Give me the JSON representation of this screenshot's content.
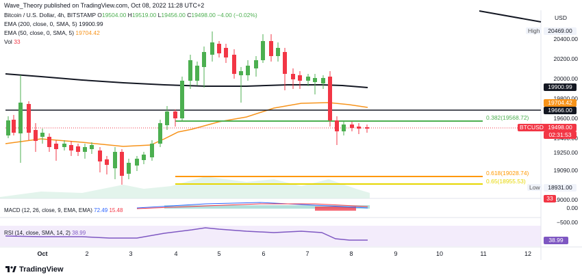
{
  "header": {
    "publisher": "Wave_Theory published on TradingView.com, Oct 08, 2022 11:28 UTC+2"
  },
  "legend": {
    "symbol": "Bitcoin / U.S. Dollar, 4h, BITSTAMP",
    "open_label": "O",
    "open": "19504.00",
    "high_label": "H",
    "high": "19519.00",
    "low_label": "L",
    "low": "19456.00",
    "close_label": "C",
    "close": "19498.00",
    "change": "−4.00 (−0.02%)",
    "ema200_label": "EMA (200, close, 0, SMA, 5)",
    "ema200_value": "19900.99",
    "ema50_label": "EMA (50, close, 0, SMA, 5)",
    "ema50_value": "19704.42",
    "vol_label": "Vol",
    "vol_value": "33"
  },
  "price_axis": {
    "currency": "USD",
    "ticks": [
      "20400.00",
      "20200.00",
      "20000.00",
      "19800.00",
      "19600.00",
      "19400.00",
      "19250.00",
      "19090.00",
      "19000.00"
    ],
    "high_label": "High",
    "high_value": "20469.00",
    "low_label": "Low",
    "low_value": "18931.00",
    "ema200_tag": "19900.99",
    "ema50_tag": "19704.42",
    "black_line_tag": "19666.00",
    "last_symbol": "BTCUSD",
    "last_price": "19498.00",
    "countdown": "02:31:53",
    "vol_tag": "33"
  },
  "fibonacci": [
    {
      "label": "0.382(19568.72)",
      "color": "#4caf50"
    },
    {
      "label": "0.618(19028.74)",
      "color": "#ff9800"
    },
    {
      "label": "0.65(18955.53)",
      "color": "#e6d600"
    }
  ],
  "macd": {
    "label": "MACD (12, 26, close, 9, EMA, EMA)",
    "v1": "72.49",
    "v2": "15.48",
    "ticks": [
      "0.00",
      "−500.00"
    ]
  },
  "rsi": {
    "label": "RSI (14, close, SMA, 14, 2)",
    "value": "38.99",
    "tag": "38.99"
  },
  "time_axis": [
    "Oct",
    "2",
    "3",
    "4",
    "5",
    "6",
    "7",
    "8",
    "9",
    "10",
    "11",
    "12"
  ],
  "footer": {
    "logo": "TradingView"
  },
  "colors": {
    "up": "#4caf50",
    "down": "#f23645",
    "ema200": "#131722",
    "ema50": "#f7931a",
    "black_line": "#131722",
    "rsi": "#7e57c2"
  }
}
